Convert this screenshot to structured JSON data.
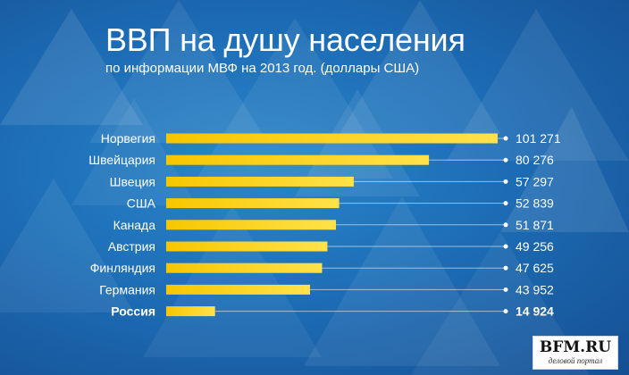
{
  "header": {
    "title": "ВВП на душу населения",
    "subtitle": "по информации МВФ на 2013 год. (доллары США)"
  },
  "logo": {
    "main": "BFM.RU",
    "sub": "деловой портал"
  },
  "colors": {
    "background": "#1d6eb7",
    "bar": "#f7c600",
    "bar_light": "#ffe24a",
    "line": "#ffffff"
  },
  "chart_data": {
    "type": "bar",
    "orientation": "horizontal",
    "title": "ВВП на душу населения",
    "subtitle": "по информации МВФ на 2013 год. (доллары США)",
    "categories": [
      "Норвегия",
      "Швейцария",
      "Швеция",
      "США",
      "Канада",
      "Австрия",
      "Финляндия",
      "Германия",
      "Россия"
    ],
    "values": [
      101271,
      80276,
      57297,
      52839,
      51871,
      49256,
      47625,
      43952,
      14924
    ],
    "value_labels": [
      "101 271",
      "80 276",
      "57 297",
      "52 839",
      "51 871",
      "49 256",
      "47 625",
      "43 952",
      "14 924"
    ],
    "highlight": [
      "Россия"
    ],
    "grid": false,
    "legend": "none"
  }
}
